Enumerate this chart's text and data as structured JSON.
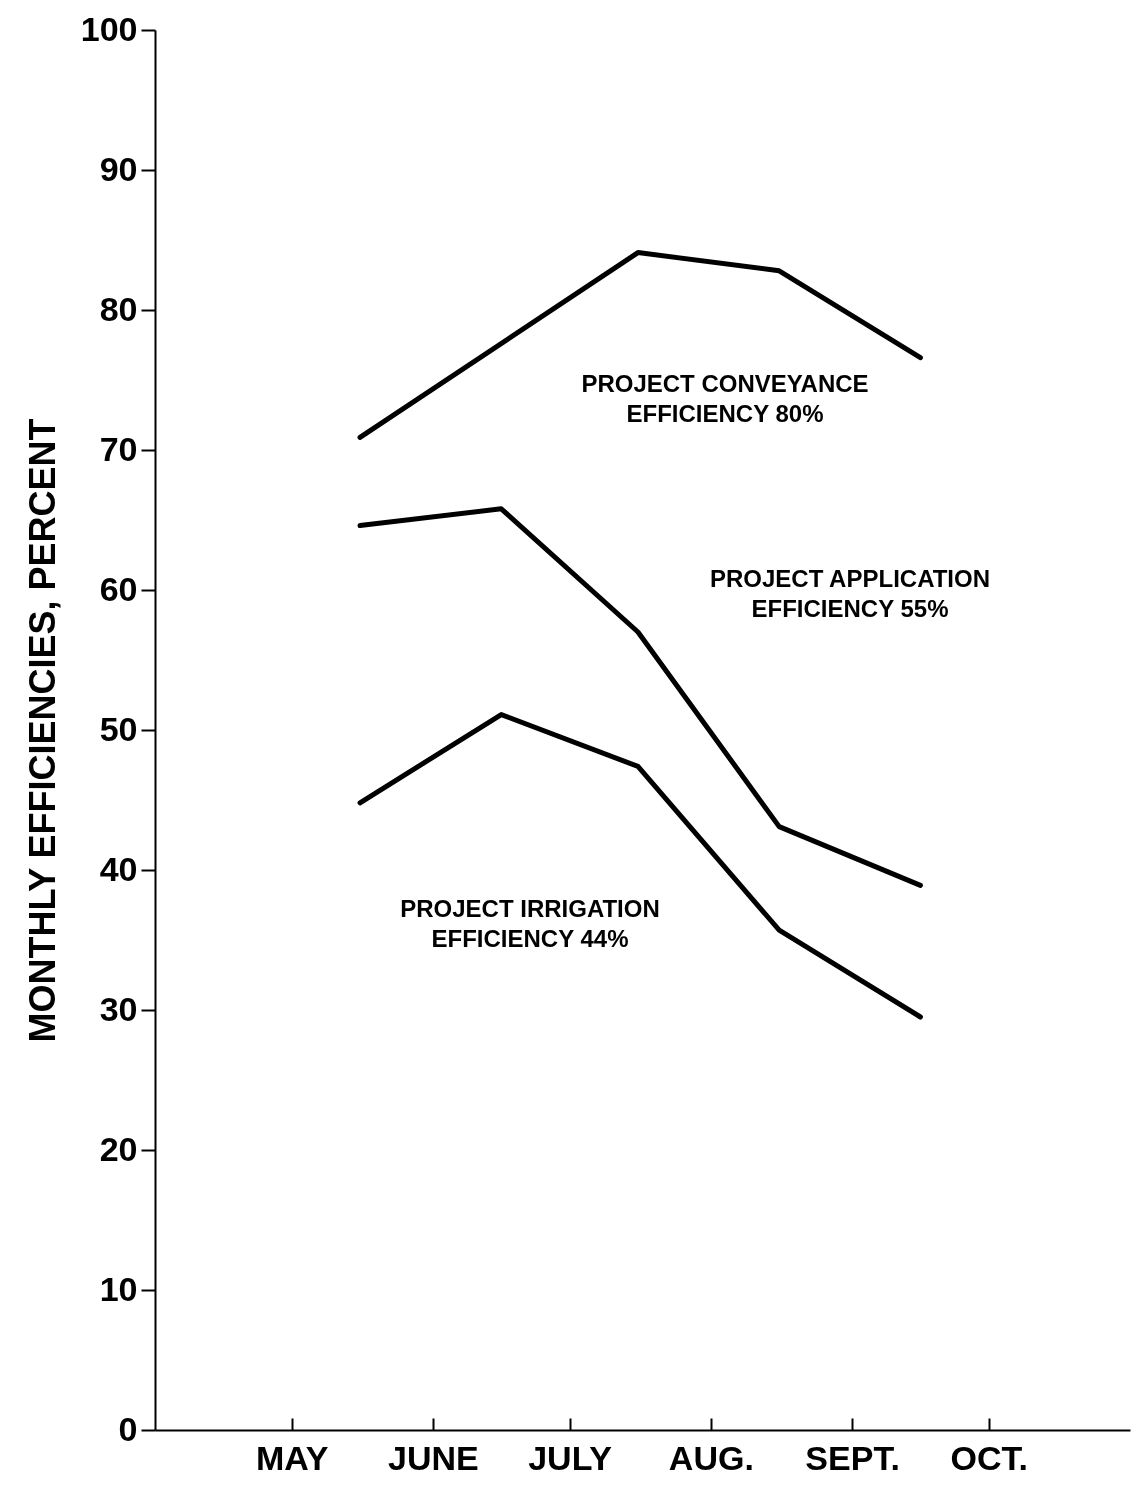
{
  "chart_data": {
    "type": "line",
    "ylabel": "MONTHLY EFFICIENCIES, PERCENT",
    "xlim": [
      "--04-01",
      "--11-01"
    ],
    "xticks": [
      {
        "value": "--05-01",
        "label": "MAY"
      },
      {
        "value": "--06-01",
        "label": "JUNE"
      },
      {
        "value": "--07-01",
        "label": "JULY"
      },
      {
        "value": "--08-01",
        "label": "AUG."
      },
      {
        "value": "--09-01",
        "label": "SEPT."
      },
      {
        "value": "--10-01",
        "label": "OCT."
      }
    ],
    "ylim": [
      0,
      100
    ],
    "yticks": [
      0,
      10,
      20,
      30,
      40,
      50,
      60,
      70,
      80,
      90,
      100
    ],
    "grid": false,
    "legend": false,
    "marker": "none",
    "line_style": "solid",
    "series": [
      {
        "color": "#000000",
        "x": [
          "--05-16",
          "--07-16",
          "--08-16",
          "--09-16"
        ],
        "values": [
          70.9,
          84.1,
          82.8,
          76.6
        ]
      },
      {
        "color": "#000000",
        "x": [
          "--05-16",
          "--06-16",
          "--07-16",
          "--08-16",
          "--09-16"
        ],
        "values": [
          64.6,
          65.8,
          57,
          43.1,
          38.9
        ]
      },
      {
        "color": "#000000",
        "x": [
          "--05-16",
          "--06-16",
          "--07-16",
          "--08-16",
          "--09-16"
        ],
        "values": [
          44.8,
          51.1,
          47.4,
          35.7,
          29.5
        ]
      }
    ],
    "annotations": [
      "PROJECT CONVEYANCE\nEFFICIENCY 80%",
      "PROJECT APPLICATION\nEFFICIENCY 55%",
      "PROJECT IRRIGATION\nEFFICIENCY 44%"
    ]
  }
}
